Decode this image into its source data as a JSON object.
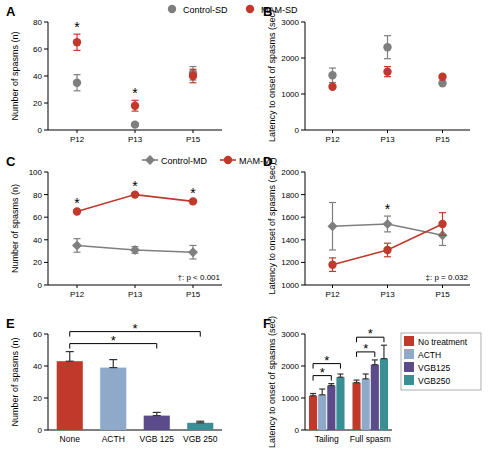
{
  "chart_data": [
    {
      "panel": "A",
      "type": "scatter",
      "categories": [
        "P12",
        "P13",
        "P15"
      ],
      "y_label": "Number of spasms (n)",
      "ylim": [
        0,
        80
      ],
      "yticks": [
        0,
        20,
        40,
        60,
        80
      ],
      "legend": "top",
      "series": [
        {
          "name": "Control-SD",
          "color": "#7f7f7f",
          "marker": "circle",
          "values": [
            35,
            4,
            42
          ],
          "errors": [
            6,
            1,
            5
          ]
        },
        {
          "name": "MAM-SD",
          "color": "#c0392b",
          "marker": "circle",
          "values": [
            65,
            18,
            40
          ],
          "errors": [
            6,
            4,
            5
          ]
        }
      ],
      "annotations": [
        {
          "text": "*",
          "category": "P12"
        },
        {
          "text": "*",
          "category": "P13"
        }
      ]
    },
    {
      "panel": "B",
      "type": "scatter",
      "categories": [
        "P12",
        "P13",
        "P15"
      ],
      "y_label": "Latency to onset of spasms (sec)",
      "ylim": [
        0,
        3000
      ],
      "yticks": [
        0,
        1000,
        2000,
        3000
      ],
      "series": [
        {
          "color": "#7f7f7f",
          "marker": "circle",
          "values": [
            1520,
            2300,
            1300
          ],
          "errors": [
            200,
            320,
            40
          ]
        },
        {
          "color": "#c0392b",
          "marker": "circle",
          "values": [
            1200,
            1620,
            1480
          ],
          "errors": [
            40,
            140,
            40
          ]
        }
      ]
    },
    {
      "panel": "C",
      "type": "line",
      "categories": [
        "P12",
        "P13",
        "P15"
      ],
      "y_label": "Number of spasms (n)",
      "ylim": [
        0,
        100
      ],
      "yticks": [
        0,
        20,
        40,
        60,
        80,
        100
      ],
      "legend": "top",
      "series": [
        {
          "name": "Control-MD",
          "color": "#7f7f7f",
          "marker": "diamond",
          "values": [
            35,
            31,
            29
          ],
          "errors": [
            6,
            3,
            6
          ]
        },
        {
          "name": "MAM-MD",
          "color": "#c0392b",
          "marker": "circle",
          "values": [
            65,
            80,
            74
          ],
          "errors": [
            1,
            1,
            1
          ]
        }
      ],
      "annotations": [
        {
          "text": "*",
          "category": "P12"
        },
        {
          "text": "*",
          "category": "P13"
        },
        {
          "text": "*",
          "category": "P15"
        }
      ],
      "footnote": "†: p < 0.001"
    },
    {
      "panel": "D",
      "type": "line",
      "categories": [
        "P12",
        "P13",
        "P15"
      ],
      "y_label": "Latency to onset of spasms (sec)",
      "ylim": [
        1000,
        2000
      ],
      "yticks": [
        1000,
        1200,
        1400,
        1600,
        1800,
        2000
      ],
      "series": [
        {
          "color": "#7f7f7f",
          "marker": "diamond",
          "values": [
            1520,
            1540,
            1440
          ],
          "errors": [
            210,
            70,
            90
          ]
        },
        {
          "color": "#c0392b",
          "marker": "circle",
          "values": [
            1180,
            1310,
            1540
          ],
          "errors": [
            60,
            60,
            100
          ]
        }
      ],
      "annotations": [
        {
          "text": "*",
          "category": "P13"
        }
      ],
      "footnote": "‡: p = 0.032"
    },
    {
      "panel": "E",
      "type": "bar",
      "categories": [
        "None",
        "ACTH",
        "VGB 125",
        "VGB 250"
      ],
      "values": [
        43,
        39,
        9,
        4.5
      ],
      "errors": [
        6,
        5,
        2,
        1
      ],
      "colors": [
        "#c0392b",
        "#8fa9c9",
        "#5b4b8a",
        "#3a8f94"
      ],
      "y_label": "Number of spasms (n)",
      "ylim": [
        0,
        60
      ],
      "yticks": [
        0,
        20,
        40,
        60
      ],
      "brackets": [
        {
          "from": "None",
          "to": "VGB 125",
          "text": "*"
        },
        {
          "from": "None",
          "to": "VGB 250",
          "text": "*"
        }
      ]
    },
    {
      "panel": "F",
      "type": "bar",
      "categories": [
        "Tailing",
        "Full spasm"
      ],
      "y_label": "Latency to onset of spasms (sec)",
      "ylim": [
        0,
        3000
      ],
      "yticks": [
        0,
        1000,
        2000,
        3000
      ],
      "legend": "right",
      "series": [
        {
          "name": "No treatment",
          "color": "#c0392b",
          "values": [
            1070,
            1480
          ],
          "errors": [
            70,
            80
          ]
        },
        {
          "name": "ACTH",
          "color": "#8fa9c9",
          "values": [
            1100,
            1600
          ],
          "errors": [
            180,
            150
          ]
        },
        {
          "name": "VGB125",
          "color": "#5b4b8a",
          "values": [
            1390,
            2040
          ],
          "errors": [
            60,
            150
          ]
        },
        {
          "name": "VGB250",
          "color": "#3a8f94",
          "values": [
            1650,
            2230
          ],
          "errors": [
            100,
            420
          ]
        }
      ],
      "brackets": [
        {
          "category": "Tailing",
          "from": "No treatment",
          "to": "VGB125",
          "text": "*"
        },
        {
          "category": "Tailing",
          "from": "No treatment",
          "to": "VGB250",
          "text": "*"
        },
        {
          "category": "Full spasm",
          "from": "No treatment",
          "to": "VGB125",
          "text": "*"
        },
        {
          "category": "Full spasm",
          "from": "No treatment",
          "to": "VGB250",
          "text": "*"
        }
      ]
    }
  ]
}
